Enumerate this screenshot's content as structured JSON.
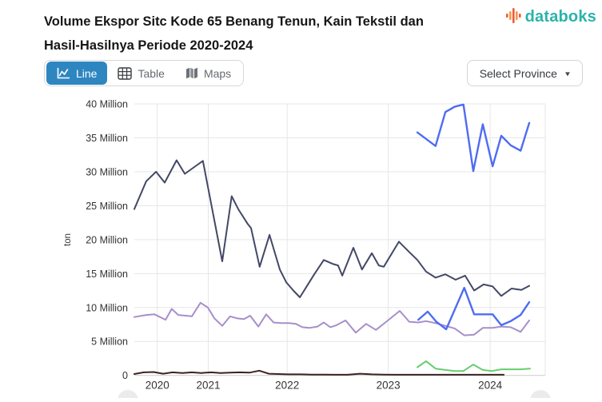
{
  "header": {
    "title_line1": "Volume Ekspor Sitc Kode 65 Benang Tenun, Kain Tekstil dan",
    "title_line2": "Hasil-Hasilnya Periode 2020-2024",
    "brand": "databoks"
  },
  "toolbar": {
    "tabs": [
      {
        "label": "Line",
        "active": true,
        "icon": "line-chart-icon"
      },
      {
        "label": "Table",
        "active": false,
        "icon": "table-grid-icon"
      },
      {
        "label": "Maps",
        "active": false,
        "icon": "maps-icon"
      }
    ],
    "province_selector": {
      "label": "Select Province",
      "icon": "chevron-down-icon"
    }
  },
  "colors": {
    "accent_tab": "#2e86c1",
    "brand_teal": "#2ab3ab",
    "brand_orange": "#f9974a",
    "brand_red": "#f05a3c",
    "grid": "#e6e6e6",
    "axis_line": "#cccccc",
    "tick_text": "#333333"
  },
  "chart_data": {
    "type": "line",
    "title": "Volume Ekspor Sitc Kode 65 Benang Tenun, Kain Tekstil dan Hasil-Hasilnya Periode 2020-2024",
    "xlabel": "",
    "ylabel": "ton",
    "ylim": [
      0,
      40000000
    ],
    "grid": true,
    "legend_position": "none",
    "unit": "million tons",
    "y_ticks": [
      {
        "label": "40 Million",
        "value": 40
      },
      {
        "label": "35 Million",
        "value": 35
      },
      {
        "label": "30 Million",
        "value": 30
      },
      {
        "label": "25 Million",
        "value": 25
      },
      {
        "label": "20 Million",
        "value": 20
      },
      {
        "label": "15 Million",
        "value": 15
      },
      {
        "label": "10 Million",
        "value": 10
      },
      {
        "label": "5 Million",
        "value": 5
      },
      {
        "label": "0",
        "value": 0
      }
    ],
    "x_ticks": [
      {
        "label": "2020",
        "f": 0.056
      },
      {
        "label": "2021",
        "f": 0.18
      },
      {
        "label": "2022",
        "f": 0.372
      },
      {
        "label": "2023",
        "f": 0.618
      },
      {
        "label": "2024",
        "f": 0.866
      }
    ],
    "series": [
      {
        "id": "dark-navy",
        "color": "#434866",
        "width": 2,
        "points": [
          [
            0.0,
            24.5
          ],
          [
            0.029,
            28.6
          ],
          [
            0.053,
            30.0
          ],
          [
            0.074,
            28.4
          ],
          [
            0.103,
            31.7
          ],
          [
            0.123,
            29.7
          ],
          [
            0.146,
            30.7
          ],
          [
            0.167,
            31.6
          ],
          [
            0.214,
            16.8
          ],
          [
            0.237,
            26.4
          ],
          [
            0.253,
            24.5
          ],
          [
            0.276,
            22.3
          ],
          [
            0.284,
            21.7
          ],
          [
            0.305,
            16.0
          ],
          [
            0.329,
            20.7
          ],
          [
            0.354,
            15.6
          ],
          [
            0.37,
            13.7
          ],
          [
            0.387,
            12.5
          ],
          [
            0.403,
            11.5
          ],
          [
            0.438,
            14.9
          ],
          [
            0.461,
            17.0
          ],
          [
            0.484,
            16.4
          ],
          [
            0.496,
            16.2
          ],
          [
            0.506,
            14.7
          ],
          [
            0.533,
            18.8
          ],
          [
            0.554,
            15.6
          ],
          [
            0.578,
            18.0
          ],
          [
            0.595,
            16.2
          ],
          [
            0.607,
            16.0
          ],
          [
            0.644,
            19.7
          ],
          [
            0.667,
            18.3
          ],
          [
            0.689,
            17.0
          ],
          [
            0.71,
            15.3
          ],
          [
            0.733,
            14.4
          ],
          [
            0.757,
            14.9
          ],
          [
            0.782,
            14.1
          ],
          [
            0.805,
            14.7
          ],
          [
            0.827,
            12.5
          ],
          [
            0.85,
            13.4
          ],
          [
            0.872,
            13.1
          ],
          [
            0.893,
            11.7
          ],
          [
            0.918,
            12.8
          ],
          [
            0.942,
            12.6
          ],
          [
            0.961,
            13.2
          ]
        ]
      },
      {
        "id": "light-purple",
        "color": "#a78fcb",
        "width": 2,
        "points": [
          [
            0.0,
            8.6
          ],
          [
            0.029,
            8.9
          ],
          [
            0.049,
            9.0
          ],
          [
            0.076,
            8.2
          ],
          [
            0.091,
            9.8
          ],
          [
            0.107,
            8.9
          ],
          [
            0.125,
            8.8
          ],
          [
            0.14,
            8.7
          ],
          [
            0.161,
            10.7
          ],
          [
            0.179,
            10.0
          ],
          [
            0.195,
            8.4
          ],
          [
            0.214,
            7.3
          ],
          [
            0.233,
            8.7
          ],
          [
            0.251,
            8.4
          ],
          [
            0.267,
            8.3
          ],
          [
            0.282,
            8.8
          ],
          [
            0.302,
            7.2
          ],
          [
            0.321,
            9.0
          ],
          [
            0.339,
            7.8
          ],
          [
            0.358,
            7.7
          ],
          [
            0.377,
            7.7
          ],
          [
            0.393,
            7.6
          ],
          [
            0.409,
            7.1
          ],
          [
            0.426,
            7.0
          ],
          [
            0.446,
            7.2
          ],
          [
            0.461,
            7.8
          ],
          [
            0.477,
            7.1
          ],
          [
            0.492,
            7.4
          ],
          [
            0.514,
            8.1
          ],
          [
            0.539,
            6.3
          ],
          [
            0.564,
            7.6
          ],
          [
            0.588,
            6.7
          ],
          [
            0.613,
            7.9
          ],
          [
            0.646,
            9.5
          ],
          [
            0.669,
            7.9
          ],
          [
            0.691,
            7.8
          ],
          [
            0.71,
            8.0
          ],
          [
            0.733,
            7.7
          ],
          [
            0.757,
            7.3
          ],
          [
            0.78,
            6.9
          ],
          [
            0.803,
            5.9
          ],
          [
            0.827,
            6.0
          ],
          [
            0.848,
            7.0
          ],
          [
            0.872,
            7.0
          ],
          [
            0.893,
            7.2
          ],
          [
            0.916,
            7.1
          ],
          [
            0.94,
            6.4
          ],
          [
            0.961,
            8.1
          ]
        ]
      },
      {
        "id": "royal-blue-upper",
        "color": "#4e6cf2",
        "width": 2.4,
        "points": [
          [
            0.689,
            35.8
          ],
          [
            0.733,
            33.8
          ],
          [
            0.757,
            38.8
          ],
          [
            0.78,
            39.6
          ],
          [
            0.801,
            39.9
          ],
          [
            0.825,
            30.1
          ],
          [
            0.848,
            37.0
          ],
          [
            0.872,
            30.8
          ],
          [
            0.893,
            35.3
          ],
          [
            0.916,
            33.9
          ],
          [
            0.94,
            33.1
          ],
          [
            0.961,
            37.2
          ]
        ]
      },
      {
        "id": "royal-blue-lower",
        "color": "#4e6cf2",
        "width": 2.4,
        "points": [
          [
            0.691,
            8.2
          ],
          [
            0.714,
            9.4
          ],
          [
            0.735,
            7.9
          ],
          [
            0.759,
            6.8
          ],
          [
            0.803,
            12.9
          ],
          [
            0.827,
            9.0
          ],
          [
            0.848,
            9.0
          ],
          [
            0.872,
            9.0
          ],
          [
            0.893,
            7.4
          ],
          [
            0.916,
            8.0
          ],
          [
            0.94,
            8.9
          ],
          [
            0.961,
            10.8
          ]
        ]
      },
      {
        "id": "green",
        "color": "#66cf6e",
        "width": 2,
        "points": [
          [
            0.689,
            1.2
          ],
          [
            0.71,
            2.1
          ],
          [
            0.733,
            1.0
          ],
          [
            0.757,
            0.8
          ],
          [
            0.78,
            0.65
          ],
          [
            0.801,
            0.65
          ],
          [
            0.825,
            1.6
          ],
          [
            0.848,
            0.8
          ],
          [
            0.87,
            0.65
          ],
          [
            0.893,
            0.9
          ],
          [
            0.916,
            0.9
          ],
          [
            0.94,
            0.9
          ],
          [
            0.963,
            1.0
          ]
        ]
      },
      {
        "id": "dark-maroon",
        "color": "#3b2322",
        "width": 2,
        "points": [
          [
            0.0,
            0.2
          ],
          [
            0.023,
            0.45
          ],
          [
            0.047,
            0.5
          ],
          [
            0.07,
            0.25
          ],
          [
            0.093,
            0.45
          ],
          [
            0.117,
            0.35
          ],
          [
            0.14,
            0.45
          ],
          [
            0.163,
            0.35
          ],
          [
            0.187,
            0.45
          ],
          [
            0.21,
            0.35
          ],
          [
            0.233,
            0.4
          ],
          [
            0.257,
            0.45
          ],
          [
            0.28,
            0.4
          ],
          [
            0.304,
            0.7
          ],
          [
            0.327,
            0.25
          ],
          [
            0.35,
            0.2
          ],
          [
            0.374,
            0.15
          ],
          [
            0.403,
            0.15
          ],
          [
            0.432,
            0.12
          ],
          [
            0.461,
            0.12
          ],
          [
            0.49,
            0.1
          ],
          [
            0.519,
            0.1
          ],
          [
            0.549,
            0.25
          ],
          [
            0.578,
            0.15
          ],
          [
            0.607,
            0.12
          ],
          [
            0.636,
            0.1
          ],
          [
            0.665,
            0.1
          ],
          [
            0.695,
            0.1
          ],
          [
            0.724,
            0.1
          ],
          [
            0.753,
            0.1
          ],
          [
            0.782,
            0.1
          ],
          [
            0.811,
            0.1
          ],
          [
            0.84,
            0.1
          ],
          [
            0.87,
            0.1
          ],
          [
            0.899,
            0.1
          ]
        ]
      }
    ]
  }
}
